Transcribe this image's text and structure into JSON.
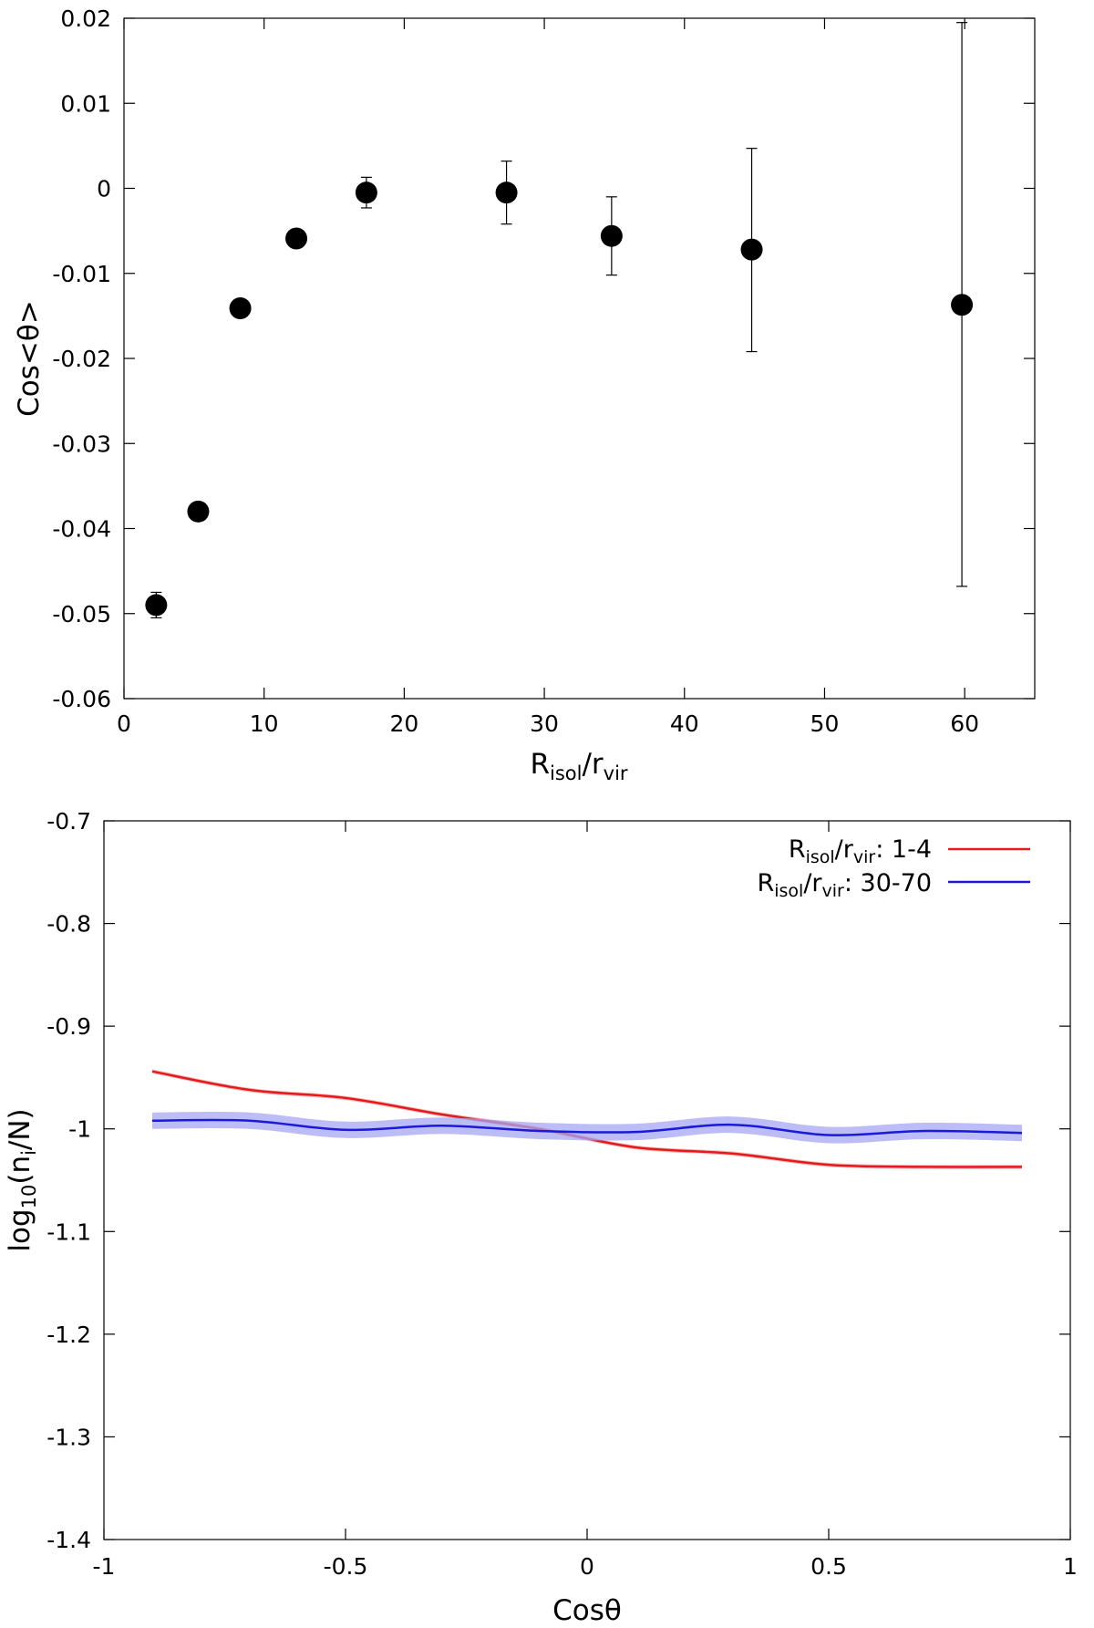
{
  "chart_data": [
    {
      "type": "scatter",
      "title": "",
      "xlabel": {
        "base": "R",
        "sub1": "isol",
        "mid": "/r",
        "sub2": "vir"
      },
      "ylabel": "Cos<θ>",
      "xlim": [
        0,
        65
      ],
      "ylim": [
        -0.06,
        0.02
      ],
      "xticks": [
        0,
        10,
        20,
        30,
        40,
        50,
        60
      ],
      "yticks": [
        -0.06,
        -0.05,
        -0.04,
        -0.03,
        -0.02,
        -0.01,
        0,
        0.01,
        0.02
      ],
      "xtick_labels": [
        "0",
        "10",
        "20",
        "30",
        "40",
        "50",
        "60"
      ],
      "ytick_labels": [
        "-0.06",
        "-0.05",
        "-0.04",
        "-0.03",
        "-0.02",
        "-0.01",
        "0",
        "0.01",
        "0.02"
      ],
      "grid": false,
      "points": [
        {
          "x": 2.3,
          "y": -0.049,
          "err_low": -0.0505,
          "err_high": -0.0475
        },
        {
          "x": 5.3,
          "y": -0.038,
          "err_low": -0.0387,
          "err_high": -0.0373
        },
        {
          "x": 8.3,
          "y": -0.0141,
          "err_low": -0.0149,
          "err_high": -0.0133
        },
        {
          "x": 12.3,
          "y": -0.0059,
          "err_low": -0.0068,
          "err_high": -0.005
        },
        {
          "x": 17.3,
          "y": -0.0005,
          "err_low": -0.0023,
          "err_high": 0.0013
        },
        {
          "x": 27.3,
          "y": -0.0005,
          "err_low": -0.0042,
          "err_high": 0.0032
        },
        {
          "x": 34.8,
          "y": -0.0056,
          "err_low": -0.0102,
          "err_high": -0.001
        },
        {
          "x": 44.8,
          "y": -0.0072,
          "err_low": -0.0192,
          "err_high": 0.0047
        },
        {
          "x": 59.8,
          "y": -0.0137,
          "err_low": -0.0468,
          "err_high": 0.0195
        }
      ]
    },
    {
      "type": "line",
      "title": "",
      "xlabel": "Cosθ",
      "ylabel": {
        "pre": "log",
        "sub1": "10",
        "mid1": "(n",
        "sub2": "i",
        "post": "/N)"
      },
      "xlim": [
        -1,
        1
      ],
      "ylim": [
        -1.4,
        -0.7
      ],
      "xticks": [
        -1,
        -0.5,
        0,
        0.5,
        1
      ],
      "yticks": [
        -1.4,
        -1.3,
        -1.2,
        -1.1,
        -1,
        -0.9,
        -0.8,
        -0.7
      ],
      "xtick_labels": [
        "-1",
        "-0.5",
        "0",
        "0.5",
        "1"
      ],
      "ytick_labels": [
        "-1.4",
        "-1.3",
        "-1.2",
        "-1.1",
        "-1",
        "-0.9",
        "-0.8",
        "-0.7"
      ],
      "grid": false,
      "legend": "top-right",
      "series": [
        {
          "name": "Risol/rvir: 1-4",
          "label_parts": {
            "base": "R",
            "sub1": "isol",
            "mid": "/r",
            "sub2": "vir",
            "post": ": 1-4"
          },
          "color": "#e41a1c",
          "band_color": "#f4a6a6",
          "x": [
            -0.9,
            -0.7,
            -0.5,
            -0.3,
            -0.1,
            0.1,
            0.3,
            0.5,
            0.7,
            0.9
          ],
          "values": [
            -0.944,
            -0.962,
            -0.97,
            -0.986,
            -1.0,
            -1.018,
            -1.024,
            -1.035,
            -1.037,
            -1.037
          ],
          "errors": [
            0.002,
            0.002,
            0.002,
            0.002,
            0.002,
            0.002,
            0.002,
            0.002,
            0.002,
            0.002
          ]
        },
        {
          "name": "Risol/rvir: 30-70",
          "label_parts": {
            "base": "R",
            "sub1": "isol",
            "mid": "/r",
            "sub2": "vir",
            "post": ": 30-70"
          },
          "color": "#1a1adc",
          "band_color": "#a6a6f4",
          "x": [
            -0.9,
            -0.7,
            -0.5,
            -0.3,
            -0.1,
            0.1,
            0.3,
            0.5,
            0.7,
            0.9
          ],
          "values": [
            -0.992,
            -0.992,
            -1.001,
            -0.997,
            -1.002,
            -1.003,
            -0.996,
            -1.006,
            -1.002,
            -1.004
          ],
          "errors": [
            0.008,
            0.008,
            0.008,
            0.008,
            0.008,
            0.008,
            0.008,
            0.008,
            0.008,
            0.008
          ]
        }
      ]
    }
  ]
}
